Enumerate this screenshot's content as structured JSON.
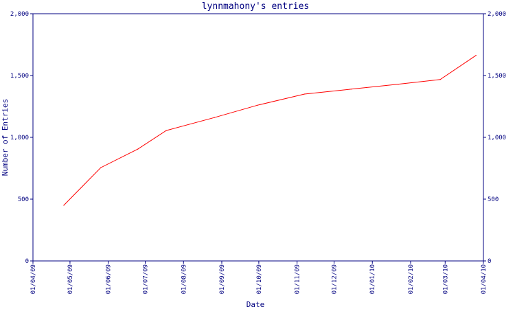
{
  "chart_data": {
    "type": "line",
    "title": "lynnmahony's entries",
    "xlabel": "Date",
    "ylabel": "Number of Entries",
    "ylim": [
      0,
      2000
    ],
    "y_ticks": [
      0,
      500,
      1000,
      1500,
      2000
    ],
    "y_tick_labels": [
      "0",
      "500",
      "1,000",
      "1,500",
      "2,000"
    ],
    "x_range": [
      "2009-04-01",
      "2010-04-01"
    ],
    "x_ticks": [
      "2009-04-01",
      "2009-05-01",
      "2009-06-01",
      "2009-07-01",
      "2009-08-01",
      "2009-09-01",
      "2009-10-01",
      "2009-11-01",
      "2009-12-01",
      "2010-01-01",
      "2010-02-01",
      "2010-03-01",
      "2010-04-01"
    ],
    "x_tick_labels": [
      "01/04/09",
      "01/05/09",
      "01/06/09",
      "01/07/09",
      "01/08/09",
      "01/09/09",
      "01/10/09",
      "01/11/09",
      "01/12/09",
      "01/01/10",
      "01/02/10",
      "01/03/10",
      "01/04/10"
    ],
    "grid": false,
    "series": [
      {
        "color": "#ff0000",
        "x": [
          "2009-04-26",
          "2009-05-26",
          "2009-06-25",
          "2009-07-18",
          "2009-08-26",
          "2009-09-30",
          "2009-11-07",
          "2009-12-15",
          "2010-01-22",
          "2010-02-25",
          "2010-03-26"
        ],
        "y": [
          450,
          755,
          905,
          1055,
          1160,
          1260,
          1350,
          1390,
          1430,
          1468,
          1663
        ]
      }
    ]
  }
}
